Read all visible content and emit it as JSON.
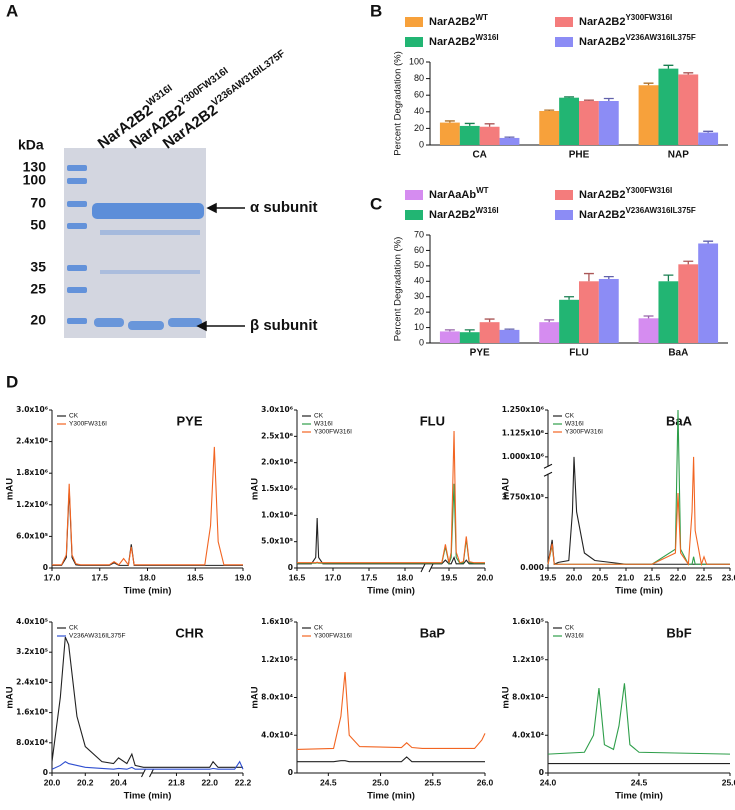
{
  "panel_labels": [
    "A",
    "B",
    "C",
    "D"
  ],
  "gel": {
    "unit": "kDa",
    "markers": [
      "130",
      "100",
      "70",
      "50",
      "35",
      "25",
      "20"
    ],
    "lanes": [
      {
        "name": "NarA2B2",
        "superscript": "W316I"
      },
      {
        "name": "NarA2B2",
        "superscript": "Y300FW316I"
      },
      {
        "name": "NarA2B2",
        "superscript": "V236AW316IL375F"
      }
    ],
    "arrows": [
      "α subunit",
      "β subunit"
    ]
  },
  "chart_data": [
    {
      "type": "bar",
      "ylabel": "Percent Degradation (%)",
      "categories": [
        "CA",
        "PHE",
        "NAP"
      ],
      "ylim": [
        0,
        100
      ],
      "yticks": [
        0,
        20,
        40,
        60,
        80,
        100
      ],
      "series": [
        {
          "name": "NarA2B2",
          "name_superscript": "WT",
          "color": "#f7a13b",
          "values": [
            27,
            41,
            72
          ],
          "errors": [
            2,
            1,
            2.5
          ]
        },
        {
          "name": "NarA2B2",
          "name_superscript": "W316I",
          "color": "#22b573",
          "values": [
            23,
            57,
            92
          ],
          "errors": [
            3,
            1,
            4
          ]
        },
        {
          "name": "NarA2B2",
          "name_superscript": "Y300FW316I",
          "color": "#f47c7c",
          "values": [
            22,
            53,
            85
          ],
          "errors": [
            3.5,
            1,
            2
          ]
        },
        {
          "name": "NarA2B2",
          "name_superscript": "V236AW316IL375F",
          "color": "#8c8cf5",
          "values": [
            8.5,
            53,
            15
          ],
          "errors": [
            1,
            3,
            1.5
          ]
        }
      ]
    },
    {
      "type": "bar",
      "ylabel": "Percent Degradation (%)",
      "categories": [
        "PYE",
        "FLU",
        "BaA"
      ],
      "ylim": [
        0,
        70
      ],
      "yticks": [
        0,
        10,
        20,
        30,
        40,
        50,
        60,
        70
      ],
      "series": [
        {
          "name": "NarAaAb",
          "name_superscript": "WT",
          "color": "#d58cf0",
          "values": [
            7.5,
            13.5,
            16
          ],
          "errors": [
            1,
            1.5,
            1.5
          ]
        },
        {
          "name": "NarA2B2",
          "name_superscript": "W316I",
          "color": "#22b573",
          "values": [
            7,
            28,
            40
          ],
          "errors": [
            1.5,
            2,
            4
          ]
        },
        {
          "name": "NarA2B2",
          "name_superscript": "Y300FW316I",
          "color": "#f47c7c",
          "values": [
            13.5,
            40,
            51
          ],
          "errors": [
            2,
            5,
            2
          ]
        },
        {
          "name": "NarA2B2",
          "name_superscript": "V236AW316IL375F",
          "color": "#8c8cf5",
          "values": [
            8.5,
            41.5,
            64.5
          ],
          "errors": [
            0.5,
            1.5,
            1.5
          ]
        }
      ]
    },
    {
      "type": "line",
      "title": "PYE",
      "xlabel": "Time (min)",
      "ylabel": "mAU",
      "xlim": [
        17.0,
        19.0
      ],
      "xticks": [
        {
          "value": 17,
          "label": "17.0"
        },
        17.5,
        {
          "value": 18,
          "label": "18.0"
        },
        18.5,
        {
          "value": 19,
          "label": "19.0"
        }
      ],
      "ylim": [
        0,
        3000000
      ],
      "yticks": [
        0,
        {
          "value": 600000,
          "label": "6.0x10⁵"
        },
        {
          "value": 1200000,
          "label": "1.2x10⁶"
        },
        {
          "value": 1800000,
          "label": "1.8x10⁶"
        },
        {
          "value": 2400000,
          "label": "2.4x10⁶"
        },
        {
          "value": 3000000,
          "label": "3.0x10⁶"
        }
      ],
      "x": [
        17.0,
        17.1,
        17.15,
        17.18,
        17.21,
        17.25,
        17.3,
        17.6,
        17.65,
        17.7,
        17.75,
        17.8,
        17.83,
        17.86,
        17.9,
        18.6,
        18.66,
        18.7,
        18.74,
        18.8,
        19.0
      ],
      "series": [
        {
          "name": "CK",
          "color": "#222222",
          "values": [
            50000,
            50000,
            200000,
            1500000,
            200000,
            60000,
            50000,
            50000,
            100000,
            50000,
            50000,
            50000,
            450000,
            50000,
            50000,
            50000,
            50000,
            50000,
            50000,
            50000,
            50000
          ]
        },
        {
          "name": "Y300FW316I",
          "color": "#f26522",
          "values": [
            60000,
            60000,
            250000,
            1600000,
            250000,
            80000,
            60000,
            60000,
            120000,
            60000,
            180000,
            60000,
            400000,
            60000,
            60000,
            60000,
            800000,
            2300000,
            500000,
            60000,
            60000
          ]
        }
      ]
    },
    {
      "type": "line",
      "title": "FLU",
      "xlabel": "Time (min)",
      "ylabel": "mAU",
      "xlim": [
        16.5,
        20.0
      ],
      "x_break": [
        18.25,
        19.25
      ],
      "xticks": [
        16.5,
        {
          "value": 17,
          "label": "17.0"
        },
        17.5,
        {
          "value": 18,
          "label": "18.0"
        },
        19.5,
        {
          "value": 20,
          "label": "20.0"
        }
      ],
      "ylim": [
        0,
        3000000
      ],
      "yticks": [
        0,
        {
          "value": 500000,
          "label": "5.0x10⁵"
        },
        {
          "value": 1000000,
          "label": "1.0x10⁶"
        },
        {
          "value": 1500000,
          "label": "1.5x10⁶"
        },
        {
          "value": 2000000,
          "label": "2.0x10⁶"
        },
        {
          "value": 2500000,
          "label": "2.5x10⁶"
        },
        {
          "value": 3000000,
          "label": "3.0x10⁶"
        }
      ],
      "x": [
        16.5,
        16.7,
        16.76,
        16.78,
        16.8,
        16.86,
        17.0,
        18.0,
        18.25,
        19.25,
        19.4,
        19.45,
        19.5,
        19.53,
        19.57,
        19.6,
        19.65,
        19.7,
        19.74,
        19.78,
        19.85,
        20.0
      ],
      "series": [
        {
          "name": "CK",
          "color": "#222222",
          "values": [
            80000,
            80000,
            200000,
            950000,
            200000,
            80000,
            80000,
            80000,
            80000,
            80000,
            80000,
            150000,
            80000,
            80000,
            200000,
            80000,
            80000,
            80000,
            150000,
            80000,
            80000,
            80000
          ]
        },
        {
          "name": "W316I",
          "color": "#2e9e4a",
          "values": [
            90000,
            90000,
            90000,
            100000,
            90000,
            90000,
            90000,
            90000,
            90000,
            90000,
            90000,
            400000,
            90000,
            200000,
            1600000,
            200000,
            90000,
            100000,
            550000,
            100000,
            90000,
            90000
          ]
        },
        {
          "name": "Y300FW316I",
          "color": "#f26522",
          "values": [
            100000,
            100000,
            100000,
            110000,
            100000,
            100000,
            100000,
            100000,
            100000,
            100000,
            100000,
            450000,
            100000,
            300000,
            2600000,
            300000,
            100000,
            120000,
            600000,
            120000,
            100000,
            100000
          ]
        }
      ]
    },
    {
      "type": "line",
      "title": "BaA",
      "xlabel": "Time (min)",
      "ylabel": "mAU",
      "xlim": [
        19.5,
        23.0
      ],
      "xticks": [
        19.5,
        {
          "value": 20,
          "label": "20.0"
        },
        20.5,
        {
          "value": 21,
          "label": "21.0"
        },
        21.5,
        {
          "value": 22,
          "label": "22.0"
        },
        22.5,
        {
          "value": 23,
          "label": "23.0"
        }
      ],
      "ylim": [
        0,
        1250000
      ],
      "y_break": [
        500000,
        950000
      ],
      "yticks": [
        {
          "value": 0,
          "label": "0.000"
        },
        {
          "value": 375000,
          "label": "3.750x10⁵"
        },
        {
          "value": 1000000,
          "label": "1.000x10⁶"
        },
        {
          "value": 1125000,
          "label": "1.125x10⁶"
        },
        {
          "value": 1250000,
          "label": "1.250x10⁶"
        }
      ],
      "x": [
        19.5,
        19.58,
        19.62,
        19.7,
        19.9,
        19.97,
        20.0,
        20.05,
        20.2,
        20.4,
        21.0,
        21.5,
        21.95,
        22.0,
        22.05,
        22.2,
        22.27,
        22.3,
        22.33,
        22.45,
        22.5,
        22.55,
        23.0
      ],
      "series": [
        {
          "name": "CK",
          "color": "#222222",
          "values": [
            20000,
            150000,
            20000,
            30000,
            40000,
            300000,
            1000000,
            300000,
            80000,
            40000,
            20000,
            20000,
            20000,
            20000,
            20000,
            20000,
            20000,
            20000,
            20000,
            20000,
            20000,
            20000,
            20000
          ]
        },
        {
          "name": "W316I",
          "color": "#2e9e4a",
          "values": [
            20000,
            120000,
            20000,
            20000,
            20000,
            20000,
            20000,
            20000,
            20000,
            20000,
            20000,
            20000,
            100000,
            1250000,
            100000,
            20000,
            20000,
            60000,
            20000,
            20000,
            20000,
            20000,
            20000
          ]
        },
        {
          "name": "Y300FW316I",
          "color": "#f26522",
          "values": [
            20000,
            130000,
            20000,
            20000,
            20000,
            20000,
            20000,
            20000,
            20000,
            20000,
            20000,
            20000,
            80000,
            400000,
            80000,
            20000,
            300000,
            1000000,
            200000,
            20000,
            60000,
            20000,
            20000
          ]
        }
      ]
    },
    {
      "type": "line",
      "title": "CHR",
      "xlabel": "Time (min)",
      "ylabel": "mAU",
      "xlim": [
        20.0,
        22.2
      ],
      "x_break": [
        20.55,
        21.65
      ],
      "xticks": [
        {
          "value": 20,
          "label": "20.0"
        },
        20.2,
        20.4,
        21.8,
        {
          "value": 22,
          "label": "22.0"
        },
        22.2
      ],
      "ylim": [
        0,
        400000
      ],
      "yticks": [
        0,
        {
          "value": 80000,
          "label": "8.0x10⁴"
        },
        {
          "value": 160000,
          "label": "1.6x10⁵"
        },
        {
          "value": 240000,
          "label": "2.4x10⁵"
        },
        {
          "value": 320000,
          "label": "3.2x10⁵"
        },
        {
          "value": 400000,
          "label": "4.0x10⁵"
        }
      ],
      "x": [
        20.0,
        20.05,
        20.08,
        20.1,
        20.15,
        20.2,
        20.3,
        20.37,
        20.4,
        20.45,
        20.48,
        20.5,
        20.55,
        21.65,
        21.8,
        22.0,
        22.02,
        22.05,
        22.15,
        22.18,
        22.2
      ],
      "series": [
        {
          "name": "CK",
          "color": "#222222",
          "values": [
            30000,
            200000,
            360000,
            340000,
            150000,
            70000,
            30000,
            25000,
            40000,
            25000,
            50000,
            20000,
            15000,
            15000,
            15000,
            15000,
            30000,
            15000,
            15000,
            15000,
            15000
          ]
        },
        {
          "name": "V236AW316IL375F",
          "color": "#2f4fd0",
          "values": [
            10000,
            20000,
            30000,
            25000,
            20000,
            15000,
            12000,
            10000,
            12000,
            10000,
            15000,
            10000,
            10000,
            10000,
            10000,
            10000,
            12000,
            10000,
            10000,
            30000,
            10000
          ]
        }
      ]
    },
    {
      "type": "line",
      "title": "BaP",
      "xlabel": "Time (min)",
      "ylabel": "mAU",
      "xlim": [
        24.2,
        26.0
      ],
      "xticks": [
        24.5,
        {
          "value": 25,
          "label": "25.0"
        },
        25.5,
        {
          "value": 26,
          "label": "26.0"
        }
      ],
      "ylim": [
        0,
        160000
      ],
      "yticks": [
        0,
        {
          "value": 40000,
          "label": "4.0x10⁴"
        },
        {
          "value": 80000,
          "label": "8.0x10⁴"
        },
        {
          "value": 120000,
          "label": "1.2x10⁵"
        },
        {
          "value": 160000,
          "label": "1.6x10⁵"
        }
      ],
      "x": [
        24.2,
        24.55,
        24.62,
        24.66,
        24.7,
        24.8,
        25.2,
        25.25,
        25.3,
        25.4,
        25.9,
        25.97,
        26.0
      ],
      "series": [
        {
          "name": "CK",
          "color": "#222222",
          "values": [
            12000,
            12000,
            13000,
            13000,
            12000,
            12000,
            12000,
            17000,
            12000,
            12000,
            12000,
            12000,
            12000
          ]
        },
        {
          "name": "Y300FW316I",
          "color": "#f26522",
          "values": [
            25000,
            26000,
            60000,
            107000,
            40000,
            28000,
            27000,
            32000,
            27000,
            26000,
            26000,
            35000,
            42000
          ]
        }
      ]
    },
    {
      "type": "line",
      "title": "BbF",
      "xlabel": "Time (min)",
      "ylabel": "mAU",
      "xlim": [
        24.0,
        25.0
      ],
      "xticks": [
        {
          "value": 24,
          "label": "24.0"
        },
        24.5,
        {
          "value": 25,
          "label": "25.0"
        }
      ],
      "ylim": [
        0,
        160000
      ],
      "yticks": [
        0,
        {
          "value": 40000,
          "label": "4.0x10⁴"
        },
        {
          "value": 80000,
          "label": "8.0x10⁴"
        },
        {
          "value": 120000,
          "label": "1.2x10⁵"
        },
        {
          "value": 160000,
          "label": "1.6x10⁵"
        }
      ],
      "x": [
        24.0,
        24.2,
        24.25,
        24.28,
        24.31,
        24.36,
        24.39,
        24.42,
        24.45,
        24.5,
        25.0
      ],
      "series": [
        {
          "name": "CK",
          "color": "#222222",
          "values": [
            10000,
            10000,
            10000,
            10000,
            10000,
            10000,
            10000,
            10000,
            10000,
            10000,
            10000
          ]
        },
        {
          "name": "W316I",
          "color": "#2e9e4a",
          "values": [
            20000,
            22000,
            40000,
            90000,
            30000,
            25000,
            50000,
            95000,
            30000,
            22000,
            20000
          ]
        }
      ]
    }
  ]
}
